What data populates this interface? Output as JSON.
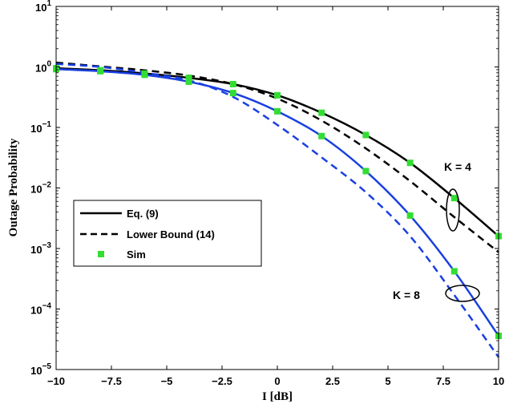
{
  "chart_data": {
    "type": "line",
    "xlabel": "I [dB]",
    "ylabel": "Outage Probability",
    "xlim": [
      -10,
      10
    ],
    "ylim_exponent": [
      -5,
      1
    ],
    "yscale": "log",
    "grid": false,
    "legend_position": "lower-left",
    "x_ticks": [
      "−10",
      "−7.5",
      "−5",
      "−2.5",
      "0",
      "2.5",
      "5",
      "7.5",
      "10"
    ],
    "y_ticks": [
      {
        "base": "10",
        "exp": "−5"
      },
      {
        "base": "10",
        "exp": "−4"
      },
      {
        "base": "10",
        "exp": "−3"
      },
      {
        "base": "10",
        "exp": "−2"
      },
      {
        "base": "10",
        "exp": "−1"
      },
      {
        "base": "10",
        "exp": "0"
      },
      {
        "base": "10",
        "exp": "1"
      }
    ],
    "legend": [
      {
        "label": "Eq. (9)",
        "style": "solid",
        "color": "#000000"
      },
      {
        "label": "Lower Bound (14)",
        "style": "dashed",
        "color": "#000000"
      },
      {
        "label": "Sim",
        "style": "marker",
        "color": "#33dd33"
      }
    ],
    "annotations": [
      "K = 4",
      "K = 8"
    ],
    "colors": {
      "k4": "#000000",
      "k8": "#1a40e0",
      "sim": "#33dd33"
    },
    "series": [
      {
        "group": "K = 4",
        "kind": "Eq. (9)",
        "style": "solid",
        "color": "#000000",
        "x": [
          -10,
          -8,
          -6,
          -4,
          -2,
          0,
          2,
          4,
          6,
          8,
          10
        ],
        "y": [
          0.95,
          0.88,
          0.78,
          0.66,
          0.52,
          0.34,
          0.175,
          0.075,
          0.026,
          0.0068,
          0.0016
        ]
      },
      {
        "group": "K = 4",
        "kind": "Lower Bound (14)",
        "style": "dashed",
        "color": "#000000",
        "x": [
          -10,
          -8,
          -6,
          -4,
          -2,
          0,
          2,
          4,
          6,
          8,
          10
        ],
        "y": [
          1.18,
          1.02,
          0.88,
          0.72,
          0.52,
          0.3,
          0.13,
          0.045,
          0.013,
          0.0033,
          0.00087
        ]
      },
      {
        "group": "K = 8",
        "kind": "Eq. (9)",
        "style": "solid",
        "color": "#1a40e0",
        "x": [
          -10,
          -8,
          -6,
          -4,
          -2,
          0,
          2,
          4,
          6,
          8,
          10
        ],
        "y": [
          0.92,
          0.85,
          0.74,
          0.57,
          0.37,
          0.185,
          0.072,
          0.019,
          0.0035,
          0.00042,
          3.6e-05
        ]
      },
      {
        "group": "K = 8",
        "kind": "Lower Bound (14)",
        "style": "dashed",
        "color": "#1a40e0",
        "x": [
          -10,
          -8,
          -6,
          -4,
          -2,
          0,
          2,
          4,
          6,
          8,
          10
        ],
        "y": [
          1.12,
          1.0,
          0.8,
          0.6,
          0.32,
          0.11,
          0.032,
          0.0085,
          0.0016,
          0.00017,
          1.6e-05
        ]
      },
      {
        "group": "K = 4",
        "kind": "Sim",
        "style": "marker",
        "color": "#33dd33",
        "x": [
          -10,
          -8,
          -6,
          -4,
          -2,
          0,
          2,
          4,
          6,
          8,
          10
        ],
        "y": [
          0.95,
          0.88,
          0.78,
          0.66,
          0.52,
          0.34,
          0.175,
          0.075,
          0.026,
          0.0068,
          0.0016
        ]
      },
      {
        "group": "K = 8",
        "kind": "Sim",
        "style": "marker",
        "color": "#33dd33",
        "x": [
          -10,
          -8,
          -6,
          -4,
          -2,
          0,
          2,
          4,
          6,
          8,
          10
        ],
        "y": [
          0.92,
          0.85,
          0.74,
          0.57,
          0.37,
          0.185,
          0.072,
          0.019,
          0.0035,
          0.00042,
          3.6e-05
        ]
      }
    ]
  }
}
